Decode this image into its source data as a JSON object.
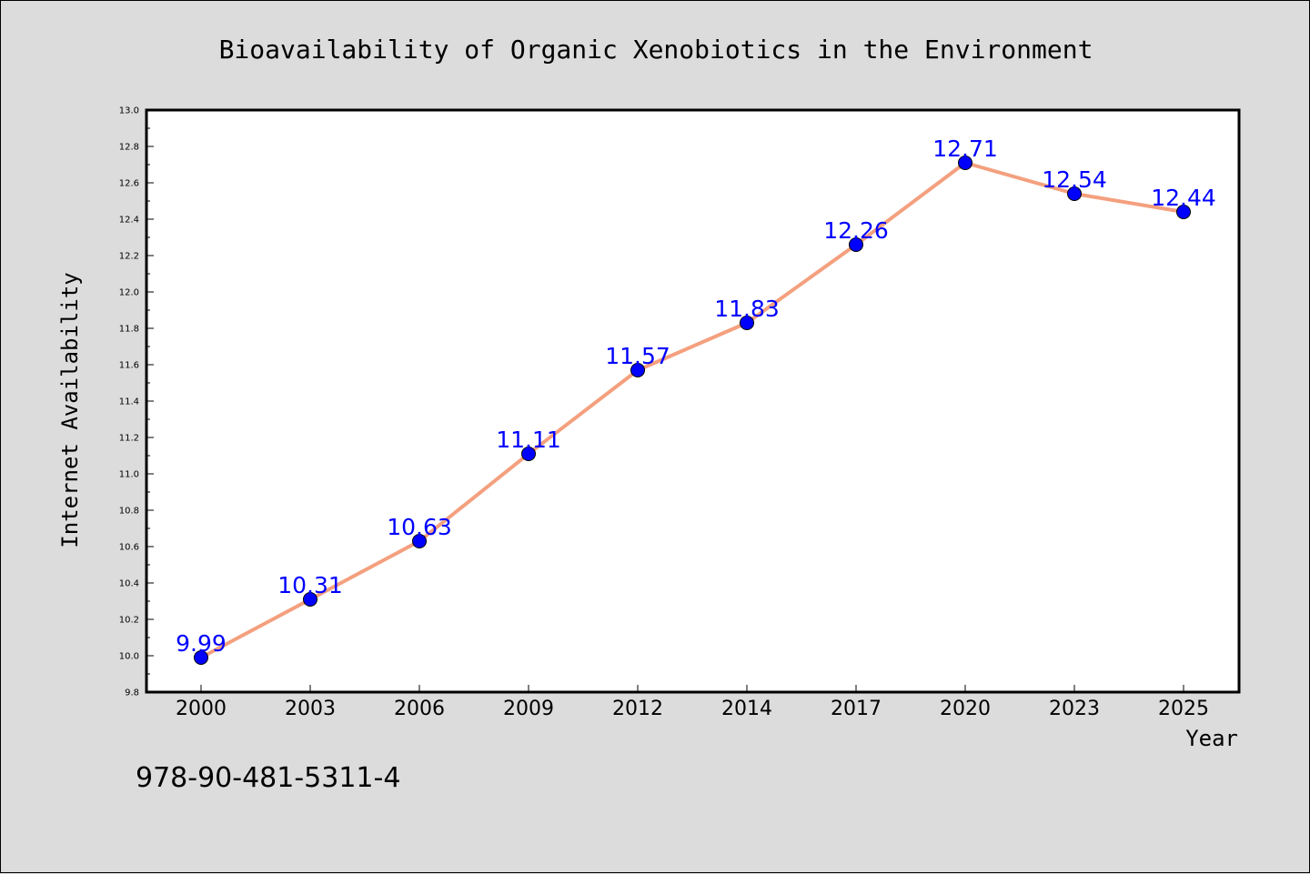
{
  "chart_data": {
    "type": "line",
    "title": "Bioavailability of Organic Xenobiotics in the Environment",
    "xlabel": "Year",
    "ylabel": "Internet Availability",
    "categories": [
      "2000",
      "2003",
      "2006",
      "2009",
      "2012",
      "2014",
      "2017",
      "2020",
      "2023",
      "2025"
    ],
    "values": [
      9.99,
      10.31,
      10.63,
      11.11,
      11.57,
      11.83,
      12.26,
      12.71,
      12.54,
      12.44
    ],
    "data_labels": [
      "9.99",
      "10.31",
      "10.63",
      "11.11",
      "11.57",
      "11.83",
      "12.26",
      "12.71",
      "12.54",
      "12.44"
    ],
    "ylim": [
      9.8,
      13.0
    ],
    "yticks": [
      "9.8",
      "10.0",
      "10.2",
      "10.4",
      "10.6",
      "10.8",
      "11.0",
      "11.2",
      "11.4",
      "11.6",
      "11.8",
      "12.0",
      "12.2",
      "12.4",
      "12.6",
      "12.8",
      "13.0"
    ],
    "grid": false,
    "legend": "none",
    "colors": {
      "line": "#f4a07e",
      "marker": "#0000ff",
      "label": "#0000ff",
      "background": "#dcdcdc",
      "plot_background": "#ffffff"
    }
  },
  "footnote": "978-90-481-5311-4"
}
